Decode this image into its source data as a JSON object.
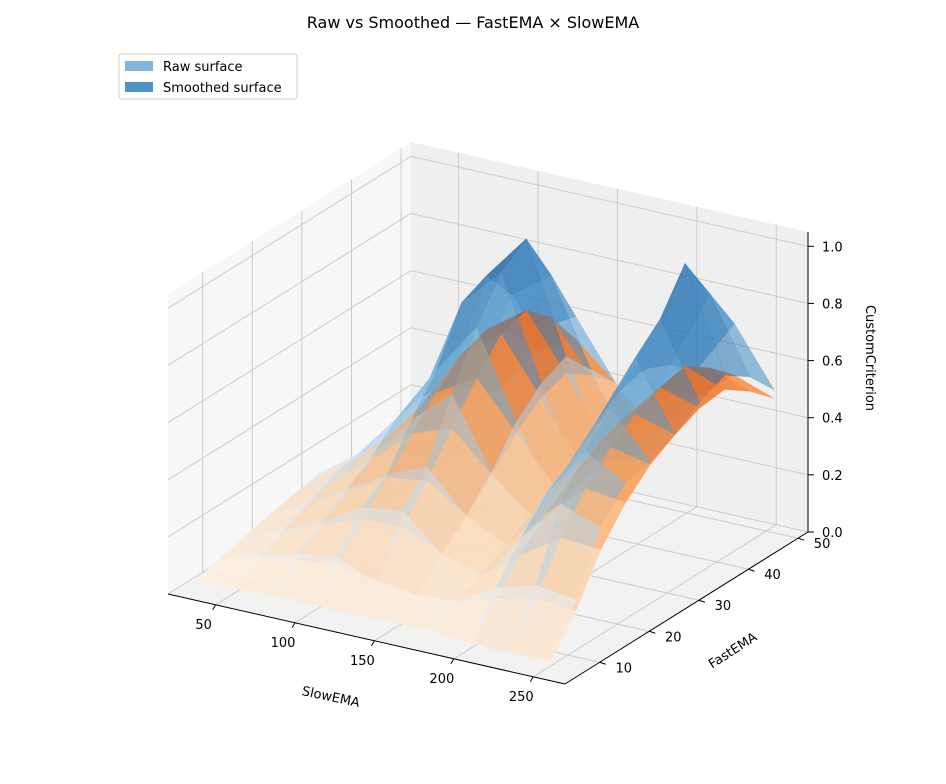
{
  "chart_data": {
    "type": "surface3d",
    "title": "Raw vs Smoothed — FastEMA × SlowEMA",
    "xlabel": "SlowEMA",
    "ylabel": "FastEMA",
    "zlabel": "CustomCriterion",
    "xticks": [
      "50",
      "100",
      "150",
      "200",
      "250"
    ],
    "yticks": [
      "10",
      "20",
      "30",
      "40",
      "50"
    ],
    "zticks": [
      "0.0",
      "0.2",
      "0.4",
      "0.6",
      "0.8",
      "1.0"
    ],
    "xlim": [
      20,
      270
    ],
    "ylim": [
      3,
      52
    ],
    "zlim": [
      0,
      1.05
    ],
    "legend": {
      "position": "upper-left",
      "entries": [
        {
          "label": "Raw surface",
          "color": "#84b4d8"
        },
        {
          "label": "Smoothed surface",
          "color": "#4f92c6"
        }
      ]
    },
    "colormaps": {
      "raw": "Blues",
      "smoothed": "Oranges"
    },
    "x": [
      30,
      55,
      80,
      105,
      130,
      155,
      180,
      205,
      230,
      255
    ],
    "y": [
      5,
      10,
      15,
      20,
      25,
      30,
      35,
      40,
      45,
      50
    ],
    "series": [
      {
        "name": "Raw surface",
        "z": [
          [
            0.02,
            0.04,
            0.06,
            0.05,
            0.04,
            0.05,
            0.06,
            0.04,
            0.03,
            0.05
          ],
          [
            0.06,
            0.1,
            0.14,
            0.16,
            0.1,
            0.08,
            0.1,
            0.18,
            0.22,
            0.2
          ],
          [
            0.08,
            0.14,
            0.2,
            0.28,
            0.3,
            0.18,
            0.12,
            0.3,
            0.45,
            0.4
          ],
          [
            0.1,
            0.18,
            0.26,
            0.34,
            0.4,
            0.26,
            0.16,
            0.4,
            0.58,
            0.5
          ],
          [
            0.12,
            0.22,
            0.32,
            0.48,
            0.6,
            0.36,
            0.2,
            0.46,
            0.68,
            0.52
          ],
          [
            0.14,
            0.24,
            0.4,
            0.6,
            0.78,
            0.48,
            0.22,
            0.54,
            0.8,
            0.56
          ],
          [
            0.12,
            0.22,
            0.42,
            0.78,
            0.92,
            0.56,
            0.24,
            0.6,
            0.88,
            0.62
          ],
          [
            0.1,
            0.2,
            0.4,
            0.82,
            0.98,
            0.6,
            0.26,
            0.62,
            1.02,
            0.66
          ],
          [
            0.08,
            0.18,
            0.34,
            0.7,
            0.8,
            0.5,
            0.22,
            0.58,
            0.86,
            0.6
          ],
          [
            0.06,
            0.14,
            0.28,
            0.52,
            0.6,
            0.4,
            0.2,
            0.5,
            0.7,
            0.5
          ]
        ]
      },
      {
        "name": "Smoothed surface",
        "z": [
          [
            0.03,
            0.04,
            0.05,
            0.05,
            0.05,
            0.05,
            0.05,
            0.04,
            0.04,
            0.04
          ],
          [
            0.06,
            0.09,
            0.12,
            0.13,
            0.11,
            0.09,
            0.1,
            0.14,
            0.17,
            0.16
          ],
          [
            0.08,
            0.13,
            0.19,
            0.24,
            0.24,
            0.18,
            0.14,
            0.24,
            0.33,
            0.32
          ],
          [
            0.1,
            0.17,
            0.25,
            0.33,
            0.35,
            0.26,
            0.19,
            0.33,
            0.45,
            0.43
          ],
          [
            0.12,
            0.2,
            0.31,
            0.43,
            0.48,
            0.35,
            0.24,
            0.4,
            0.54,
            0.51
          ],
          [
            0.13,
            0.22,
            0.36,
            0.52,
            0.6,
            0.44,
            0.28,
            0.45,
            0.6,
            0.56
          ],
          [
            0.12,
            0.22,
            0.39,
            0.6,
            0.7,
            0.51,
            0.31,
            0.49,
            0.64,
            0.6
          ],
          [
            0.11,
            0.21,
            0.39,
            0.63,
            0.73,
            0.54,
            0.32,
            0.51,
            0.66,
            0.61
          ],
          [
            0.09,
            0.18,
            0.34,
            0.56,
            0.65,
            0.48,
            0.29,
            0.47,
            0.6,
            0.55
          ],
          [
            0.07,
            0.14,
            0.27,
            0.45,
            0.52,
            0.4,
            0.25,
            0.41,
            0.52,
            0.47
          ]
        ]
      }
    ],
    "grid": true
  }
}
